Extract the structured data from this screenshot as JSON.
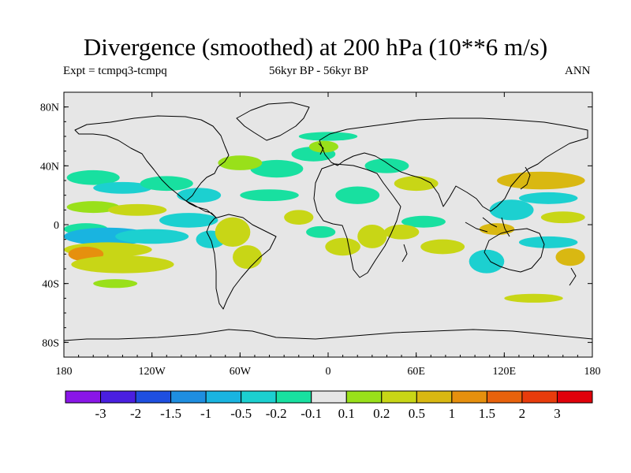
{
  "title": "Divergence (smoothed) at 200 hPa (10**6 m/s)",
  "experiment": "Expt = tcmpq3-tcmpq",
  "period": "56kyr BP - 56kyr BP",
  "season": "ANN",
  "chart_data": {
    "type": "heatmap",
    "projection": "equirectangular",
    "lon_range": [
      -180,
      180
    ],
    "lat_range": [
      -90,
      90
    ],
    "lat_ticks": [
      {
        "value": 80,
        "label": "80N"
      },
      {
        "value": 40,
        "label": "40N"
      },
      {
        "value": 0,
        "label": "0"
      },
      {
        "value": -40,
        "label": "40S"
      },
      {
        "value": -80,
        "label": "80S"
      }
    ],
    "lon_ticks": [
      {
        "value": -180,
        "label": "180"
      },
      {
        "value": -120,
        "label": "120W"
      },
      {
        "value": -60,
        "label": "60W"
      },
      {
        "value": 0,
        "label": "0"
      },
      {
        "value": 60,
        "label": "60E"
      },
      {
        "value": 120,
        "label": "120E"
      },
      {
        "value": 180,
        "label": "180"
      }
    ],
    "levels": [
      "-3",
      "-2",
      "-1.5",
      "-1",
      "-0.5",
      "-0.2",
      "-0.1",
      "0.1",
      "0.2",
      "0.5",
      "1",
      "1.5",
      "2",
      "3"
    ],
    "colors": [
      "#8a16e8",
      "#4a1fe0",
      "#1e4fe0",
      "#1e8ee0",
      "#19b4e0",
      "#1cd0d0",
      "#18e0a0",
      "#e6e6e6",
      "#99e01a",
      "#c8d616",
      "#d9b812",
      "#e6900e",
      "#e8620c",
      "#e83c0c",
      "#e0000a"
    ],
    "regions": [
      {
        "lon": -160,
        "lat": 32,
        "rlon": 18,
        "rlat": 5,
        "bin": 6
      },
      {
        "lon": -140,
        "lat": 25,
        "rlon": 20,
        "rlat": 4,
        "bin": 5
      },
      {
        "lon": -110,
        "lat": 28,
        "rlon": 18,
        "rlat": 5,
        "bin": 6
      },
      {
        "lon": -160,
        "lat": 12,
        "rlon": 18,
        "rlat": 4,
        "bin": 8
      },
      {
        "lon": -130,
        "lat": 10,
        "rlon": 20,
        "rlat": 4,
        "bin": 9
      },
      {
        "lon": -165,
        "lat": -3,
        "rlon": 15,
        "rlat": 4,
        "bin": 6
      },
      {
        "lon": -150,
        "lat": -8,
        "rlon": 30,
        "rlat": 6,
        "bin": 4
      },
      {
        "lon": -120,
        "lat": -8,
        "rlon": 25,
        "rlat": 5,
        "bin": 5
      },
      {
        "lon": -150,
        "lat": -17,
        "rlon": 30,
        "rlat": 5,
        "bin": 9
      },
      {
        "lon": -165,
        "lat": -20,
        "rlon": 12,
        "rlat": 5,
        "bin": 11
      },
      {
        "lon": -140,
        "lat": -27,
        "rlon": 35,
        "rlat": 6,
        "bin": 9
      },
      {
        "lon": -145,
        "lat": -40,
        "rlon": 15,
        "rlat": 3,
        "bin": 8
      },
      {
        "lon": -88,
        "lat": 20,
        "rlon": 15,
        "rlat": 5,
        "bin": 5
      },
      {
        "lon": -95,
        "lat": 3,
        "rlon": 20,
        "rlat": 5,
        "bin": 5
      },
      {
        "lon": -80,
        "lat": -10,
        "rlon": 10,
        "rlat": 6,
        "bin": 5
      },
      {
        "lon": -65,
        "lat": -5,
        "rlon": 12,
        "rlat": 10,
        "bin": 9
      },
      {
        "lon": -55,
        "lat": -22,
        "rlon": 10,
        "rlat": 8,
        "bin": 9
      },
      {
        "lon": -40,
        "lat": 20,
        "rlon": 20,
        "rlat": 4,
        "bin": 6
      },
      {
        "lon": -35,
        "lat": 38,
        "rlon": 18,
        "rlat": 6,
        "bin": 6
      },
      {
        "lon": -60,
        "lat": 42,
        "rlon": 15,
        "rlat": 5,
        "bin": 8
      },
      {
        "lon": -10,
        "lat": 48,
        "rlon": 15,
        "rlat": 5,
        "bin": 6
      },
      {
        "lon": -3,
        "lat": 53,
        "rlon": 10,
        "rlat": 4,
        "bin": 8
      },
      {
        "lon": 0,
        "lat": 60,
        "rlon": 20,
        "rlat": 3,
        "bin": 6
      },
      {
        "lon": -20,
        "lat": 5,
        "rlon": 10,
        "rlat": 5,
        "bin": 9
      },
      {
        "lon": -5,
        "lat": -5,
        "rlon": 10,
        "rlat": 4,
        "bin": 6
      },
      {
        "lon": 10,
        "lat": -15,
        "rlon": 12,
        "rlat": 6,
        "bin": 9
      },
      {
        "lon": 20,
        "lat": 20,
        "rlon": 15,
        "rlat": 6,
        "bin": 6
      },
      {
        "lon": 30,
        "lat": -8,
        "rlon": 10,
        "rlat": 8,
        "bin": 9
      },
      {
        "lon": 40,
        "lat": 40,
        "rlon": 15,
        "rlat": 5,
        "bin": 6
      },
      {
        "lon": 60,
        "lat": 28,
        "rlon": 15,
        "rlat": 5,
        "bin": 9
      },
      {
        "lon": 65,
        "lat": 2,
        "rlon": 15,
        "rlat": 4,
        "bin": 6
      },
      {
        "lon": 50,
        "lat": -5,
        "rlon": 12,
        "rlat": 5,
        "bin": 9
      },
      {
        "lon": 78,
        "lat": -15,
        "rlon": 15,
        "rlat": 5,
        "bin": 9
      },
      {
        "lon": 108,
        "lat": -25,
        "rlon": 12,
        "rlat": 8,
        "bin": 5
      },
      {
        "lon": 125,
        "lat": 10,
        "rlon": 15,
        "rlat": 7,
        "bin": 5
      },
      {
        "lon": 115,
        "lat": -3,
        "rlon": 12,
        "rlat": 4,
        "bin": 10
      },
      {
        "lon": 145,
        "lat": 30,
        "rlon": 30,
        "rlat": 6,
        "bin": 10
      },
      {
        "lon": 150,
        "lat": 18,
        "rlon": 20,
        "rlat": 4,
        "bin": 5
      },
      {
        "lon": 160,
        "lat": 5,
        "rlon": 15,
        "rlat": 4,
        "bin": 9
      },
      {
        "lon": 150,
        "lat": -12,
        "rlon": 20,
        "rlat": 4,
        "bin": 5
      },
      {
        "lon": 165,
        "lat": -22,
        "rlon": 10,
        "rlat": 6,
        "bin": 10
      },
      {
        "lon": 140,
        "lat": -50,
        "rlon": 20,
        "rlat": 3,
        "bin": 9
      }
    ]
  }
}
